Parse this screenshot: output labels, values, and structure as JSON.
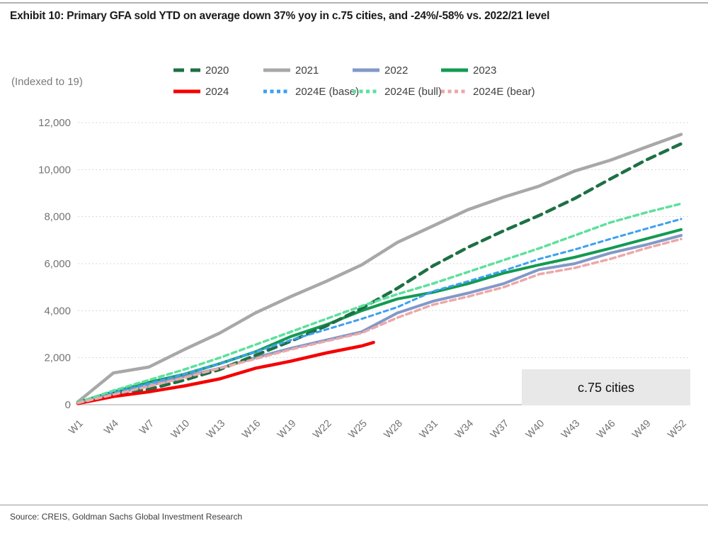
{
  "title": "Exhibit 10: Primary GFA sold YTD on average down 37% yoy in c.75 cities, and -24%/-58% vs. 2022/21 level",
  "axis_note": "(Indexed to 19)",
  "annotation": "c.75 cities",
  "source": "Source: CREIS, Goldman Sachs Global Investment Research",
  "colors": {
    "grid": "#d8d8d8",
    "axis": "#c0c0c0",
    "tick_text": "#737373",
    "annotation_bg": "#e8e8e8"
  },
  "chart_data": {
    "type": "line",
    "title": "Primary GFA sold YTD, indexed to 2019, c.75 cities",
    "x": [
      1,
      4,
      7,
      10,
      13,
      16,
      19,
      22,
      25,
      28,
      31,
      34,
      37,
      40,
      43,
      46,
      49,
      52
    ],
    "x_tick_labels": [
      "W1",
      "W4",
      "W7",
      "W10",
      "W13",
      "W16",
      "W19",
      "W22",
      "W25",
      "W28",
      "W31",
      "W34",
      "W37",
      "W40",
      "W43",
      "W46",
      "W49",
      "W52"
    ],
    "y_ticks": [
      0,
      2000,
      4000,
      6000,
      8000,
      10000,
      12000
    ],
    "y_tick_labels": [
      "0",
      "2,000",
      "4,000",
      "6,000",
      "8,000",
      "10,000",
      "12,000"
    ],
    "ylim": [
      0,
      12000
    ],
    "grid": "horizontal-dotted",
    "legend_position": "top",
    "series": [
      {
        "name": "2020",
        "color": "#1e7045",
        "style": "dashed",
        "width": 4.5,
        "dash": "12 8",
        "legend_dash": "15 9",
        "values": [
          80,
          500,
          650,
          1050,
          1500,
          2100,
          2700,
          3350,
          4100,
          4950,
          5900,
          6700,
          7400,
          8050,
          8770,
          9600,
          10400,
          11100
        ]
      },
      {
        "name": "2021",
        "color": "#a8a8a8",
        "style": "solid",
        "width": 4.5,
        "dash": null,
        "legend_dash": null,
        "values": [
          120,
          1350,
          1600,
          2350,
          3050,
          3900,
          4600,
          5250,
          5950,
          6900,
          7600,
          8300,
          8830,
          9300,
          9940,
          10400,
          10950,
          11500
        ]
      },
      {
        "name": "2022",
        "color": "#8199c8",
        "style": "solid",
        "width": 4,
        "dash": null,
        "legend_dash": null,
        "values": [
          80,
          450,
          800,
          1200,
          1550,
          2000,
          2400,
          2750,
          3100,
          3900,
          4400,
          4750,
          5150,
          5750,
          6000,
          6450,
          6800,
          7200
        ]
      },
      {
        "name": "2023",
        "color": "#139a52",
        "style": "solid",
        "width": 4,
        "dash": null,
        "legend_dash": null,
        "values": [
          100,
          550,
          950,
          1300,
          1750,
          2250,
          2900,
          3400,
          4000,
          4500,
          4780,
          5150,
          5600,
          5950,
          6270,
          6650,
          7050,
          7450
        ]
      },
      {
        "name": "2024",
        "color": "#f40000",
        "style": "solid",
        "width": 4.5,
        "dash": null,
        "legend_dash": null,
        "x": [
          1,
          4,
          7,
          10,
          13,
          16,
          19,
          22,
          25,
          26
        ],
        "values": [
          50,
          350,
          550,
          800,
          1100,
          1550,
          1850,
          2200,
          2500,
          2650
        ]
      },
      {
        "name": "2024E (base)",
        "color": "#3da0f2",
        "style": "dashed",
        "width": 3,
        "dash": "6 5",
        "legend_dash": "5 4.5",
        "values": [
          80,
          500,
          900,
          1300,
          1750,
          2250,
          2750,
          3200,
          3650,
          4150,
          4820,
          5250,
          5700,
          6200,
          6600,
          7050,
          7480,
          7900
        ]
      },
      {
        "name": "2024E (bull)",
        "color": "#5ee09d",
        "style": "dashed",
        "width": 3.5,
        "dash": "7 5",
        "legend_dash": "5 4.5",
        "values": [
          100,
          600,
          1050,
          1500,
          2000,
          2550,
          3100,
          3650,
          4200,
          4700,
          5150,
          5650,
          6150,
          6650,
          7200,
          7750,
          8170,
          8550
        ]
      },
      {
        "name": "2024E (bear)",
        "color": "#eca8a8",
        "style": "dashed",
        "width": 3.5,
        "dash": "8 5",
        "legend_dash": "5 4.5",
        "values": [
          70,
          430,
          780,
          1150,
          1550,
          1950,
          2350,
          2700,
          3050,
          3700,
          4250,
          4600,
          5000,
          5550,
          5820,
          6200,
          6650,
          7050
        ]
      }
    ]
  }
}
